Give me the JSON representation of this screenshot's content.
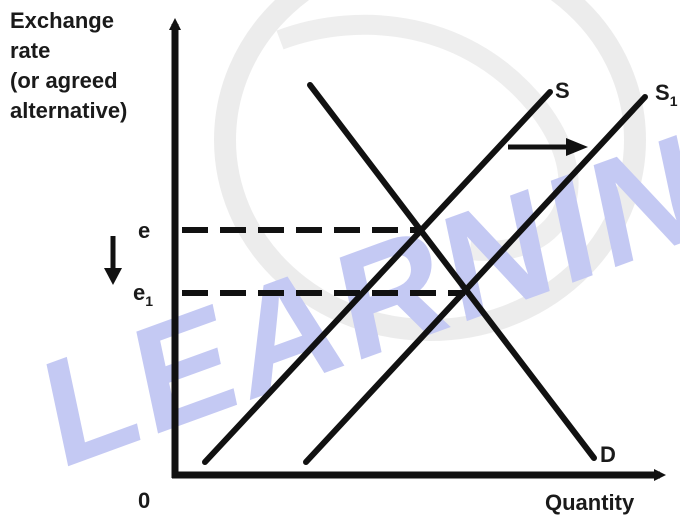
{
  "diagram": {
    "y_axis_label_lines": [
      "Exchange",
      "rate",
      "(or agreed",
      "alternative)"
    ],
    "x_axis_label": "Quantity",
    "origin_label": "0",
    "curves": {
      "supply": "S",
      "supply_shifted_main": "S",
      "supply_shifted_sub": "1",
      "demand": "D"
    },
    "equilibrium": {
      "initial_main": "e",
      "new_main": "e",
      "new_sub": "1"
    },
    "watermark_text": "LEARNING",
    "colors": {
      "ink": "#111111",
      "label": "#1a1a1a",
      "watermark_text": "#2f3fd6",
      "watermark_ring": "#cfcfcf"
    },
    "arrows": {
      "shift_direction": "right",
      "rate_change_direction": "down"
    }
  }
}
